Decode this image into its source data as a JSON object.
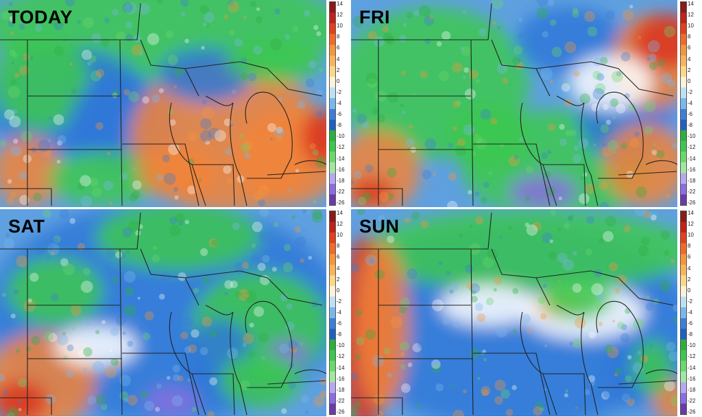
{
  "panels": [
    {
      "label": "TODAY",
      "theme": "today"
    },
    {
      "label": "FRI",
      "theme": "fri"
    },
    {
      "label": "SAT",
      "theme": "sat"
    },
    {
      "label": "SUN",
      "theme": "sun"
    }
  ],
  "scale": {
    "ticks": [
      "14",
      "12",
      "10",
      "8",
      "6",
      "4",
      "2",
      "0",
      "-2",
      "-4",
      "-6",
      "-8",
      "-10",
      "-12",
      "-14",
      "-16",
      "-18",
      "-22",
      "-26"
    ],
    "colors": [
      "#8b1a1a",
      "#c0221c",
      "#e0401e",
      "#f06a2a",
      "#f5963c",
      "#f8b45a",
      "#fbd888",
      "#fdf2d8",
      "#bfe0f4",
      "#7ab8ec",
      "#3d7fd6",
      "#2060c0",
      "#2eae3e",
      "#3cc850",
      "#6ad86a",
      "#a0e8a0",
      "#b6a8f0",
      "#8a6ee0",
      "#6a3aa8"
    ]
  }
}
